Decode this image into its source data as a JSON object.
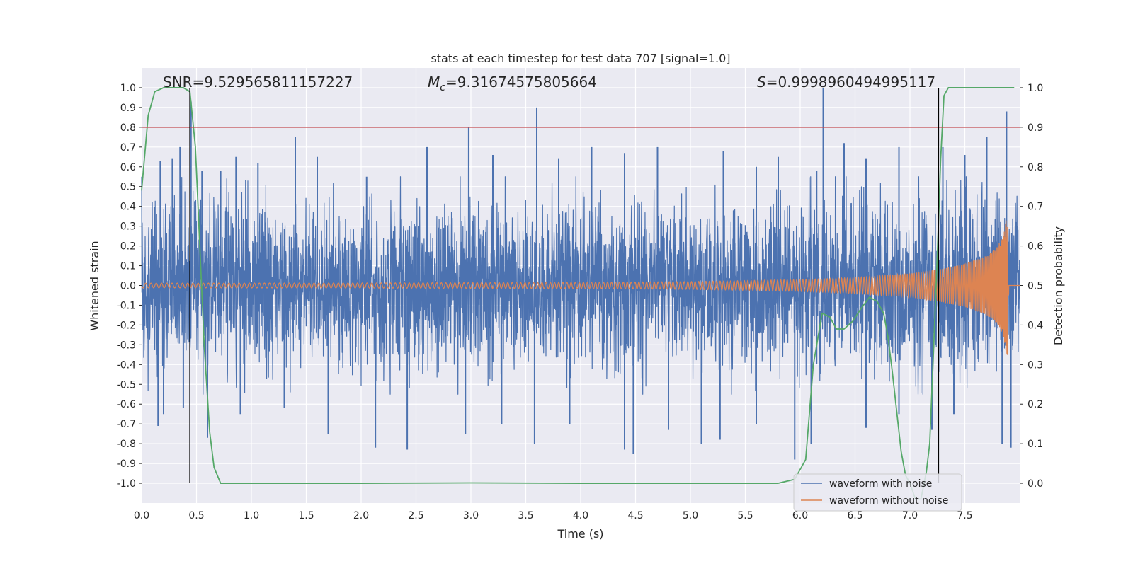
{
  "chart_data": {
    "type": "line",
    "title": "stats at each timestep for test data 707 [signal=1.0]",
    "xlabel": "Time (s)",
    "ylabel": "Whitened strain",
    "y2label": "Detection probability",
    "xlim": [
      0.0,
      8.0
    ],
    "ylim": [
      -1.1,
      1.1
    ],
    "y2lim": [
      -0.05,
      1.05
    ],
    "xticks": [
      "0.0",
      "0.5",
      "1.0",
      "1.5",
      "2.0",
      "2.5",
      "3.0",
      "3.5",
      "4.0",
      "4.5",
      "5.0",
      "5.5",
      "6.0",
      "6.5",
      "7.0",
      "7.5"
    ],
    "yticks": [
      "1.0",
      "0.9",
      "0.8",
      "0.7",
      "0.6",
      "0.5",
      "0.4",
      "0.3",
      "0.2",
      "0.1",
      "0.0",
      "-0.1",
      "-0.2",
      "-0.3",
      "-0.4",
      "-0.5",
      "-0.6",
      "-0.7",
      "-0.8",
      "-0.9",
      "-1.0"
    ],
    "y2ticks": [
      "1.0",
      "0.9",
      "0.8",
      "0.7",
      "0.6",
      "0.5",
      "0.4",
      "0.3",
      "0.2",
      "0.1",
      "0.0"
    ],
    "grid": true,
    "annotations": {
      "snr": "SNR=9.529565811157227",
      "mc_symbol": "M",
      "mc_sub": "c",
      "mc_value": "=9.31674575805664",
      "s_symbol": "S",
      "s_value": "=0.9998960494995117"
    },
    "threshold": {
      "value": 0.8,
      "color": "#c44e52"
    },
    "vertical_lines": [
      0.44,
      7.26
    ],
    "series": [
      {
        "name": "waveform with noise",
        "color": "#4c72b0",
        "spikes_top": [
          [
            0.17,
            0.63
          ],
          [
            0.28,
            0.64
          ],
          [
            0.35,
            0.7
          ],
          [
            0.45,
            0.93
          ],
          [
            0.55,
            0.58
          ],
          [
            0.72,
            0.58
          ],
          [
            0.86,
            0.65
          ],
          [
            1.06,
            0.62
          ],
          [
            1.4,
            0.75
          ],
          [
            1.6,
            0.65
          ],
          [
            2.05,
            0.55
          ],
          [
            2.6,
            0.7
          ],
          [
            2.98,
            0.8
          ],
          [
            3.2,
            0.66
          ],
          [
            3.6,
            0.9
          ],
          [
            3.8,
            0.64
          ],
          [
            4.1,
            0.7
          ],
          [
            4.4,
            0.67
          ],
          [
            4.7,
            0.7
          ],
          [
            5.3,
            0.68
          ],
          [
            5.6,
            0.6
          ],
          [
            5.8,
            0.65
          ],
          [
            6.15,
            0.58
          ],
          [
            6.21,
            1.0
          ],
          [
            6.4,
            0.72
          ],
          [
            6.6,
            0.64
          ],
          [
            6.9,
            0.7
          ],
          [
            7.3,
            0.7
          ],
          [
            7.5,
            0.66
          ],
          [
            7.7,
            0.75
          ],
          [
            7.88,
            0.88
          ]
        ],
        "spikes_bottom": [
          [
            0.15,
            -0.71
          ],
          [
            0.2,
            -0.65
          ],
          [
            0.38,
            -0.62
          ],
          [
            0.6,
            -0.77
          ],
          [
            0.9,
            -0.65
          ],
          [
            1.3,
            -0.62
          ],
          [
            1.7,
            -0.75
          ],
          [
            2.13,
            -0.82
          ],
          [
            2.42,
            -0.83
          ],
          [
            2.95,
            -0.75
          ],
          [
            3.28,
            -0.7
          ],
          [
            3.58,
            -0.8
          ],
          [
            3.9,
            -0.7
          ],
          [
            4.4,
            -0.83
          ],
          [
            4.48,
            -0.85
          ],
          [
            4.8,
            -0.73
          ],
          [
            5.1,
            -0.8
          ],
          [
            5.27,
            -0.78
          ],
          [
            5.6,
            -0.7
          ],
          [
            5.95,
            -0.88
          ],
          [
            6.1,
            -0.8
          ],
          [
            6.6,
            -0.72
          ],
          [
            6.9,
            -0.65
          ],
          [
            7.2,
            -0.73
          ],
          [
            7.4,
            -0.65
          ],
          [
            7.84,
            -0.8
          ],
          [
            7.92,
            -0.82
          ]
        ]
      },
      {
        "name": "waveform without noise",
        "color": "#dd8452",
        "envelope": [
          [
            0.0,
            0.012
          ],
          [
            2.0,
            0.013
          ],
          [
            4.0,
            0.016
          ],
          [
            5.0,
            0.02
          ],
          [
            6.0,
            0.03
          ],
          [
            6.5,
            0.04
          ],
          [
            7.0,
            0.06
          ],
          [
            7.3,
            0.085
          ],
          [
            7.5,
            0.11
          ],
          [
            7.7,
            0.15
          ],
          [
            7.8,
            0.2
          ],
          [
            7.85,
            0.26
          ],
          [
            7.89,
            0.38
          ],
          [
            7.9,
            0.3
          ]
        ],
        "end_time": 7.9
      },
      {
        "name": "detection probability",
        "color": "#55a868",
        "axis": "right",
        "x": [
          0.0,
          0.06,
          0.12,
          0.2,
          0.3,
          0.38,
          0.44,
          0.49,
          0.53,
          0.57,
          0.62,
          0.66,
          0.72,
          0.8,
          1.0,
          2.0,
          3.0,
          4.0,
          5.0,
          5.8,
          5.95,
          6.05,
          6.12,
          6.2,
          6.27,
          6.33,
          6.4,
          6.48,
          6.55,
          6.63,
          6.7,
          6.76,
          6.8,
          6.84,
          6.88,
          6.92,
          6.96,
          7.0,
          7.05,
          7.1,
          7.15,
          7.18,
          7.21,
          7.25,
          7.28,
          7.31,
          7.35,
          7.5,
          7.7,
          7.85,
          7.9,
          7.95
        ],
        "y": [
          0.74,
          0.93,
          0.99,
          1.0,
          1.0,
          1.0,
          0.99,
          0.85,
          0.6,
          0.35,
          0.13,
          0.04,
          0.0,
          0.0,
          0.0,
          0.0,
          0.001,
          0.0,
          0.0,
          0.0,
          0.01,
          0.06,
          0.3,
          0.43,
          0.42,
          0.39,
          0.39,
          0.41,
          0.44,
          0.47,
          0.46,
          0.43,
          0.37,
          0.28,
          0.18,
          0.08,
          0.02,
          0.0,
          -0.04,
          -0.04,
          0.03,
          0.1,
          0.3,
          0.58,
          0.82,
          0.98,
          1.0,
          1.0,
          1.0,
          1.0,
          1.0,
          1.0
        ]
      }
    ],
    "legend": {
      "location": "lower-right",
      "entries": [
        "waveform with noise",
        "waveform without noise"
      ]
    }
  }
}
